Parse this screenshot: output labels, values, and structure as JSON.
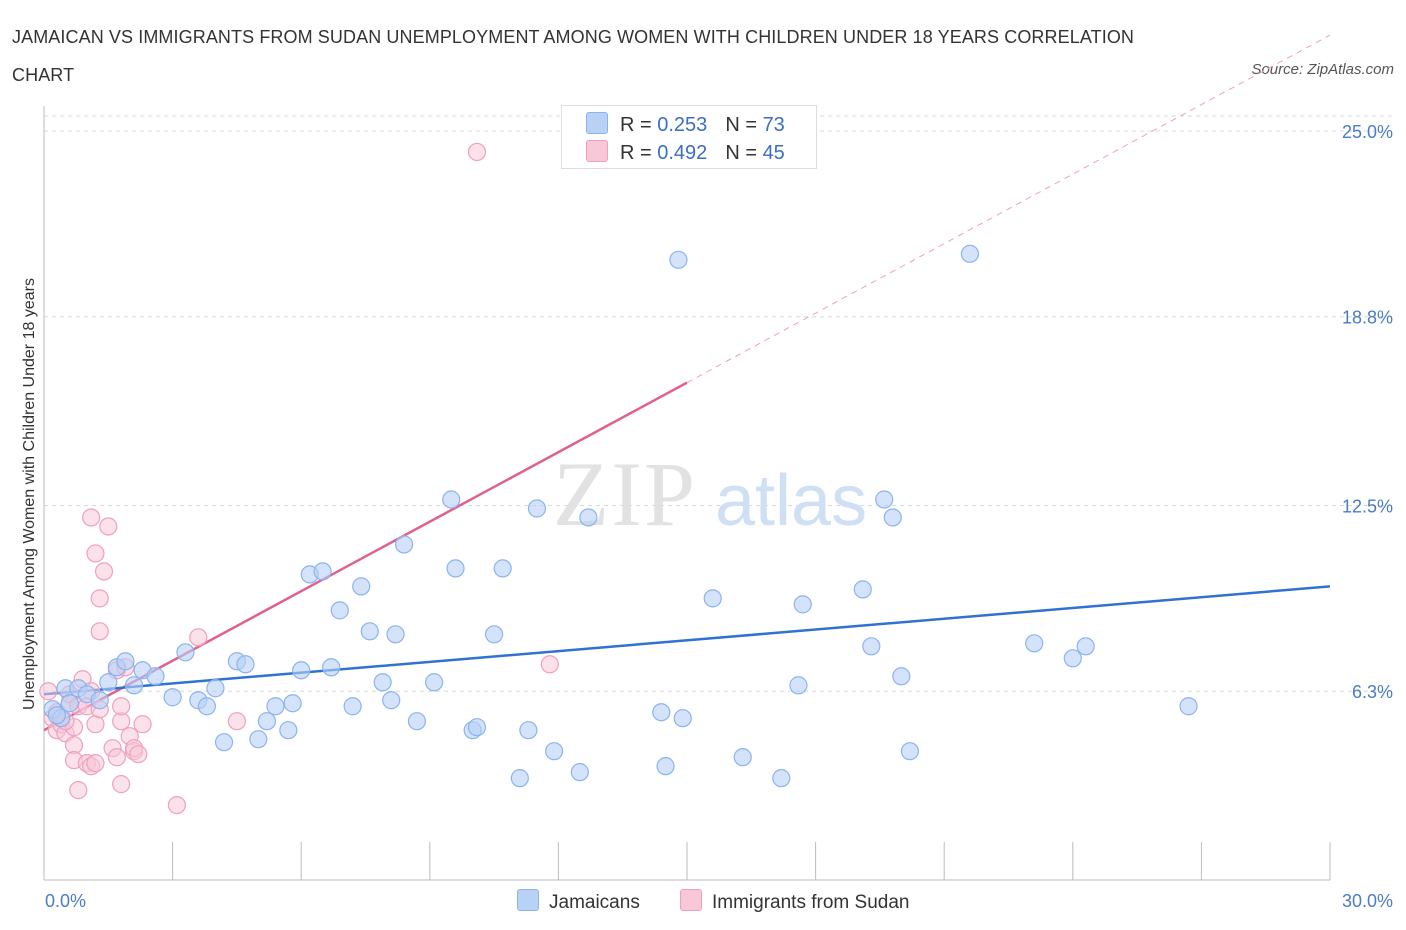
{
  "title": "JAMAICAN VS IMMIGRANTS FROM SUDAN UNEMPLOYMENT AMONG WOMEN WITH CHILDREN UNDER 18 YEARS CORRELATION CHART",
  "source": "Source: ZipAtlas.com",
  "watermark": {
    "zip": "ZIP",
    "atlas": "atlas"
  },
  "colors": {
    "blue": "#8ab4f0",
    "blue_fill": "#b8d1f5",
    "blue_line": "#2f72d4",
    "pink": "#f0a0bb",
    "pink_fill": "#f8c8d8",
    "pink_line": "#e06090",
    "tick_text": "#4a7cc7",
    "grid": "#d8d8d8"
  },
  "legend_top": [
    {
      "r_label": "R =",
      "r_value": "0.253",
      "n_label": "N =",
      "n_value": "73",
      "color": "#b8d1f5"
    },
    {
      "r_label": "R =",
      "r_value": "0.492",
      "n_label": "N =",
      "n_value": "45",
      "color": "#f8c8d8"
    }
  ],
  "legend_bottom": [
    {
      "label": "Jamaicans",
      "color": "#b8d1f5"
    },
    {
      "label": "Immigrants from Sudan",
      "color": "#f8c8d8"
    }
  ],
  "chart_data": {
    "type": "scatter",
    "title": "JAMAICAN VS IMMIGRANTS FROM SUDAN UNEMPLOYMENT AMONG WOMEN WITH CHILDREN UNDER 18 YEARS CORRELATION CHART",
    "xlabel": "",
    "ylabel": "Unemployment Among Women with Children Under 18 years",
    "xlim": [
      0,
      30
    ],
    "ylim": [
      0,
      25.5
    ],
    "x_tick_labels": [
      "0.0%",
      "30.0%"
    ],
    "y_ticks": [
      6.3,
      12.5,
      18.8,
      25.0
    ],
    "y_tick_labels": [
      "6.3%",
      "12.5%",
      "18.8%",
      "25.0%"
    ],
    "grid": true,
    "legend_position": "top-center",
    "series": [
      {
        "name": "Jamaicans",
        "color": "#2f72d4",
        "trend": {
          "x": [
            0,
            30
          ],
          "y": [
            6.2,
            9.8
          ]
        },
        "points": [
          [
            0.2,
            5.7
          ],
          [
            0.4,
            5.4
          ],
          [
            0.5,
            6.4
          ],
          [
            0.8,
            6.4
          ],
          [
            1.0,
            6.2
          ],
          [
            1.3,
            6.0
          ],
          [
            1.5,
            6.6
          ],
          [
            1.7,
            7.1
          ],
          [
            1.9,
            7.3
          ],
          [
            2.1,
            6.5
          ],
          [
            2.3,
            7.0
          ],
          [
            2.6,
            6.8
          ],
          [
            3.0,
            6.1
          ],
          [
            3.3,
            7.6
          ],
          [
            3.6,
            6.0
          ],
          [
            3.8,
            5.8
          ],
          [
            4.0,
            6.4
          ],
          [
            4.2,
            4.6
          ],
          [
            4.5,
            7.3
          ],
          [
            4.7,
            7.2
          ],
          [
            5.0,
            4.7
          ],
          [
            5.2,
            5.3
          ],
          [
            5.4,
            5.8
          ],
          [
            5.7,
            5.0
          ],
          [
            5.8,
            5.9
          ],
          [
            6.0,
            7.0
          ],
          [
            6.2,
            10.2
          ],
          [
            6.5,
            10.3
          ],
          [
            6.7,
            7.1
          ],
          [
            6.9,
            9.0
          ],
          [
            7.2,
            5.8
          ],
          [
            7.4,
            9.8
          ],
          [
            7.6,
            8.3
          ],
          [
            7.9,
            6.6
          ],
          [
            8.1,
            6.0
          ],
          [
            8.2,
            8.2
          ],
          [
            8.4,
            11.2
          ],
          [
            8.7,
            5.3
          ],
          [
            9.1,
            6.6
          ],
          [
            9.5,
            12.7
          ],
          [
            9.6,
            10.4
          ],
          [
            10.0,
            5.0
          ],
          [
            10.1,
            5.1
          ],
          [
            10.5,
            8.2
          ],
          [
            10.7,
            10.4
          ],
          [
            11.1,
            3.4
          ],
          [
            11.3,
            5.0
          ],
          [
            11.5,
            12.4
          ],
          [
            11.9,
            4.3
          ],
          [
            12.5,
            3.6
          ],
          [
            12.7,
            12.1
          ],
          [
            14.4,
            5.6
          ],
          [
            14.5,
            3.8
          ],
          [
            14.8,
            20.7
          ],
          [
            14.9,
            5.4
          ],
          [
            15.6,
            9.4
          ],
          [
            16.3,
            4.1
          ],
          [
            17.2,
            3.4
          ],
          [
            17.6,
            6.5
          ],
          [
            17.7,
            9.2
          ],
          [
            19.1,
            9.7
          ],
          [
            19.3,
            7.8
          ],
          [
            19.6,
            12.7
          ],
          [
            19.8,
            12.1
          ],
          [
            20.0,
            6.8
          ],
          [
            20.2,
            4.3
          ],
          [
            21.6,
            20.9
          ],
          [
            23.1,
            7.9
          ],
          [
            24.0,
            7.4
          ],
          [
            24.3,
            7.8
          ],
          [
            26.7,
            5.8
          ],
          [
            0.3,
            5.5
          ],
          [
            0.6,
            5.9
          ]
        ]
      },
      {
        "name": "Immigrants from Sudan",
        "color": "#e06090",
        "trend": {
          "x": [
            0,
            15
          ],
          "y": [
            5.0,
            16.6
          ]
        },
        "trend_extension": {
          "x": [
            15,
            30
          ],
          "y": [
            16.6,
            28.2
          ]
        },
        "points": [
          [
            0.1,
            6.3
          ],
          [
            0.2,
            5.4
          ],
          [
            0.3,
            5.0
          ],
          [
            0.3,
            5.6
          ],
          [
            0.4,
            5.2
          ],
          [
            0.5,
            4.9
          ],
          [
            0.6,
            5.9
          ],
          [
            0.6,
            6.2
          ],
          [
            0.7,
            5.1
          ],
          [
            0.7,
            4.5
          ],
          [
            0.7,
            4.0
          ],
          [
            0.8,
            5.8
          ],
          [
            0.8,
            3.0
          ],
          [
            0.9,
            6.7
          ],
          [
            1.0,
            3.9
          ],
          [
            1.0,
            5.8
          ],
          [
            1.1,
            3.8
          ],
          [
            1.1,
            6.3
          ],
          [
            1.1,
            12.1
          ],
          [
            1.2,
            3.9
          ],
          [
            1.2,
            5.2
          ],
          [
            1.2,
            10.9
          ],
          [
            1.3,
            9.4
          ],
          [
            1.3,
            8.3
          ],
          [
            1.4,
            10.3
          ],
          [
            1.5,
            11.8
          ],
          [
            1.6,
            4.4
          ],
          [
            1.7,
            7.0
          ],
          [
            1.7,
            4.1
          ],
          [
            1.8,
            5.3
          ],
          [
            1.8,
            5.8
          ],
          [
            1.8,
            3.2
          ],
          [
            1.9,
            7.1
          ],
          [
            2.0,
            4.8
          ],
          [
            2.1,
            4.3
          ],
          [
            2.1,
            4.4
          ],
          [
            2.2,
            4.2
          ],
          [
            2.3,
            5.2
          ],
          [
            3.1,
            2.5
          ],
          [
            3.6,
            8.1
          ],
          [
            4.5,
            5.3
          ],
          [
            10.1,
            24.3
          ],
          [
            11.8,
            7.2
          ],
          [
            1.3,
            5.7
          ],
          [
            0.5,
            5.3
          ]
        ]
      }
    ]
  }
}
